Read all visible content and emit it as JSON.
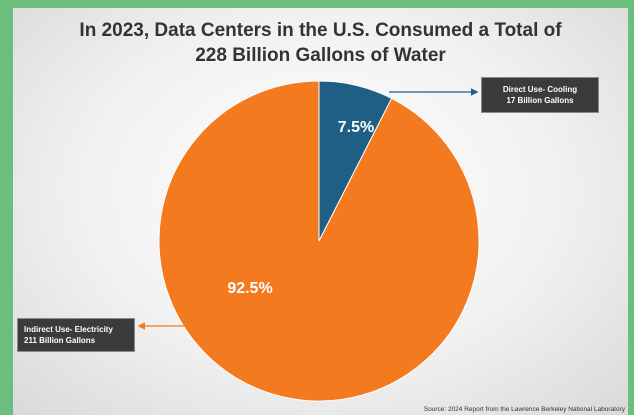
{
  "chart_data": {
    "type": "pie",
    "title_lines": [
      "In 2023, Data Centers in the U.S. Consumed a Total of",
      "228 Billion Gallons of Water"
    ],
    "slices": [
      {
        "label_line1": "Direct Use- Cooling",
        "label_line2": "17 Billion Gallons",
        "value": 7.5,
        "pct_label": "7.5%",
        "color": "#1f5f86"
      },
      {
        "label_line1": "Indirect Use- Electricity",
        "label_line2": "211 Billion Gallons",
        "value": 92.5,
        "pct_label": "92.5%",
        "color": "#f47a20"
      }
    ],
    "source": "Source: 2024 Report from the Lawrence Berkeley National Laboratory"
  },
  "colors": {
    "direct_arrow": "#1f5f86",
    "indirect_arrow": "#f47a20",
    "slice_border": "#ffffff"
  }
}
